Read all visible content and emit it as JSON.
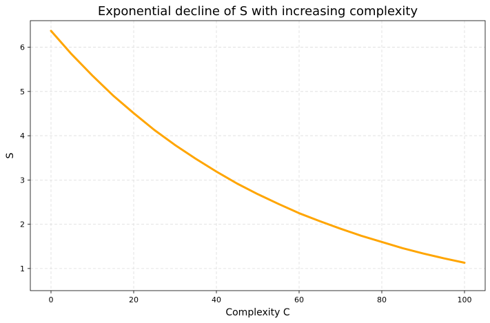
{
  "chart_data": {
    "type": "line",
    "title": "Exponential decline of S with increasing complexity",
    "xlabel": "Complexity C",
    "ylabel": "S",
    "xlim": [
      -5,
      105
    ],
    "ylim": [
      0.5,
      6.6
    ],
    "grid": true,
    "x_ticks": [
      0,
      20,
      40,
      60,
      80,
      100
    ],
    "y_ticks": [
      1,
      2,
      3,
      4,
      5,
      6
    ],
    "series": [
      {
        "name": "S",
        "color": "#ffa500",
        "x": [
          0,
          5,
          10,
          15,
          20,
          25,
          30,
          35,
          40,
          45,
          50,
          55,
          60,
          65,
          70,
          75,
          80,
          85,
          90,
          95,
          100
        ],
        "values": [
          6.37,
          5.84,
          5.36,
          4.91,
          4.51,
          4.13,
          3.79,
          3.48,
          3.19,
          2.92,
          2.68,
          2.46,
          2.25,
          2.07,
          1.9,
          1.74,
          1.6,
          1.46,
          1.34,
          1.23,
          1.13
        ]
      }
    ]
  }
}
